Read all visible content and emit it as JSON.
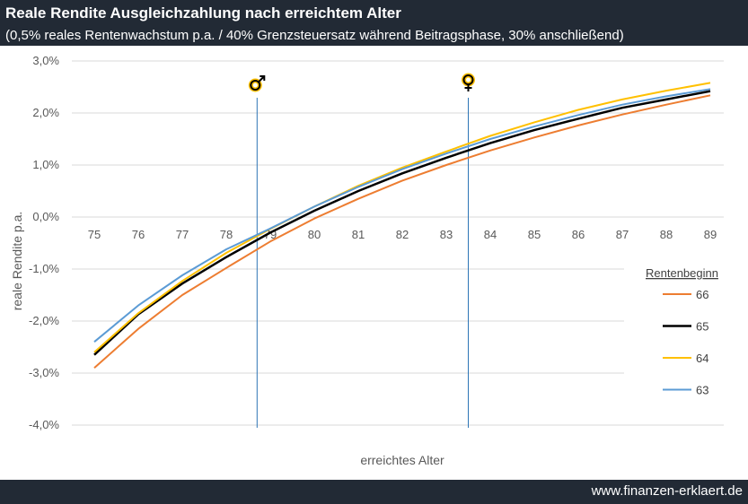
{
  "header": {
    "title": "Reale Rendite Ausgleichzahlung nach erreichtem Alter",
    "subtitle": "(0,5% reales Rentenwachstum p.a. / 40% Grenzsteuersatz während Beitragsphase, 30% anschließend)"
  },
  "footer": {
    "url": "www.finanzen-erklaert.de"
  },
  "chart_data": {
    "type": "line",
    "title": "Reale Rendite Ausgleichzahlung nach erreichtem Alter",
    "subtitle": "(0,5% reales Rentenwachstum p.a. / 40% Grenzsteuersatz während Beitragsphase, 30% anschließend)",
    "xlabel": "erreichtes Alter",
    "ylabel": "reale Rendite p.a.",
    "x": [
      75,
      76,
      77,
      78,
      79,
      80,
      81,
      82,
      83,
      84,
      85,
      86,
      87,
      88,
      89
    ],
    "xlim": [
      75,
      89
    ],
    "ylim": [
      -4.0,
      3.0
    ],
    "ytick_labels": [
      "3,0%",
      "2,0%",
      "1,0%",
      "0,0%",
      "-1,0%",
      "-2,0%",
      "-3,0%",
      "-4,0%"
    ],
    "yticks": [
      3,
      2,
      1,
      0,
      -1,
      -2,
      -3,
      -4
    ],
    "grid": true,
    "legend_title": "Rentenbeginn",
    "legend_position": "right",
    "series": [
      {
        "name": "66",
        "color": "#ed7d31",
        "values": [
          -2.9,
          -2.15,
          -1.5,
          -0.98,
          -0.47,
          -0.03,
          0.35,
          0.7,
          1.0,
          1.28,
          1.53,
          1.76,
          1.97,
          2.16,
          2.34
        ]
      },
      {
        "name": "65",
        "color": "#000000",
        "values": [
          -2.65,
          -1.87,
          -1.28,
          -0.77,
          -0.3,
          0.12,
          0.5,
          0.84,
          1.14,
          1.42,
          1.67,
          1.89,
          2.1,
          2.26,
          2.42
        ]
      },
      {
        "name": "64",
        "color": "#ffc000",
        "values": [
          -2.6,
          -1.85,
          -1.23,
          -0.69,
          -0.23,
          0.2,
          0.6,
          0.95,
          1.26,
          1.56,
          1.82,
          2.06,
          2.26,
          2.43,
          2.58
        ]
      },
      {
        "name": "63",
        "color": "#5b9bd5",
        "values": [
          -2.4,
          -1.7,
          -1.12,
          -0.62,
          -0.22,
          0.2,
          0.58,
          0.92,
          1.22,
          1.5,
          1.74,
          1.96,
          2.16,
          2.32,
          2.46
        ]
      }
    ],
    "markers": [
      {
        "x": 78.7,
        "icon": "male-symbol-icon",
        "color": "#2e75b6"
      },
      {
        "x": 83.5,
        "icon": "female-symbol-icon",
        "color": "#2e75b6"
      }
    ]
  }
}
